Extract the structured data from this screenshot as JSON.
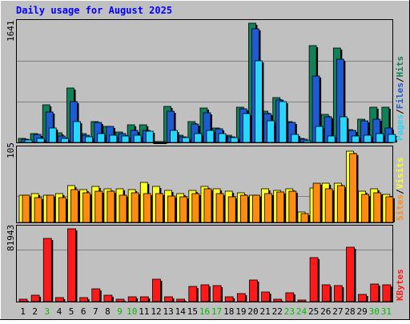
{
  "chart_data": [
    {
      "type": "bar",
      "title": "Daily usage for August 2025",
      "categories": [
        "1",
        "2",
        "3",
        "4",
        "5",
        "6",
        "7",
        "8",
        "9",
        "10",
        "11",
        "12",
        "13",
        "14",
        "15",
        "16",
        "17",
        "18",
        "19",
        "20",
        "21",
        "22",
        "23",
        "24",
        "25",
        "26",
        "27",
        "28",
        "29",
        "30",
        "31"
      ],
      "weekend_days": [
        "3",
        "9",
        "10",
        "16",
        "17",
        "23",
        "24",
        "30",
        "31"
      ],
      "ymax_label": "1641",
      "ylim": [
        0,
        1641
      ],
      "side_labels": [
        "Pages",
        "Files",
        "Hits"
      ],
      "series": [
        {
          "name": "Hits",
          "color": "#138157",
          "values": [
            55,
            123,
            521,
            134,
            752,
            116,
            286,
            225,
            145,
            238,
            242,
            1,
            493,
            94,
            283,
            473,
            194,
            98,
            487,
            1641,
            431,
            615,
            283,
            60,
            1328,
            383,
            1296,
            171,
            316,
            481,
            481
          ]
        },
        {
          "name": "Files",
          "color": "#1e5ad3",
          "values": [
            45,
            106,
            416,
            92,
            562,
            98,
            276,
            215,
            123,
            164,
            164,
            1,
            427,
            74,
            257,
            409,
            184,
            82,
            467,
            1563,
            393,
            582,
            275,
            42,
            913,
            349,
            1149,
            162,
            300,
            317,
            200
          ]
        },
        {
          "name": "Pages",
          "color": "#26d7ff",
          "values": [
            28,
            57,
            200,
            50,
            282,
            77,
            119,
            94,
            83,
            103,
            153,
            1,
            163,
            66,
            121,
            161,
            126,
            61,
            399,
            1119,
            300,
            566,
            107,
            22,
            225,
            89,
            350,
            93,
            95,
            119,
            105
          ]
        }
      ]
    },
    {
      "type": "bar",
      "categories": [
        "1",
        "2",
        "3",
        "4",
        "5",
        "6",
        "7",
        "8",
        "9",
        "10",
        "11",
        "12",
        "13",
        "14",
        "15",
        "16",
        "17",
        "18",
        "19",
        "20",
        "21",
        "22",
        "23",
        "24",
        "25",
        "26",
        "27",
        "28",
        "29",
        "30",
        "31"
      ],
      "ymax_label": "105",
      "ylim": [
        0,
        105
      ],
      "side_labels": [
        "Sites",
        "Visits"
      ],
      "series": [
        {
          "name": "Visits",
          "color": "#ffff26",
          "values": [
            39,
            41,
            39,
            42,
            53,
            47,
            52,
            49,
            49,
            47,
            58,
            52,
            46,
            41,
            46,
            52,
            49,
            45,
            43,
            39,
            48,
            46,
            48,
            15,
            50,
            56,
            57,
            103,
            45,
            48,
            40
          ]
        },
        {
          "name": "Sites",
          "color": "#ff8c10",
          "values": [
            39,
            36,
            39,
            36,
            47,
            43,
            45,
            45,
            39,
            43,
            41,
            42,
            38,
            37,
            42,
            49,
            41,
            37,
            39,
            39,
            41,
            44,
            45,
            13,
            57,
            49,
            53,
            99,
            40,
            43,
            37
          ]
        }
      ]
    },
    {
      "type": "bar",
      "categories": [
        "1",
        "2",
        "3",
        "4",
        "5",
        "6",
        "7",
        "8",
        "9",
        "10",
        "11",
        "12",
        "13",
        "14",
        "15",
        "16",
        "17",
        "18",
        "19",
        "20",
        "21",
        "22",
        "23",
        "24",
        "25",
        "26",
        "27",
        "28",
        "29",
        "30",
        "31"
      ],
      "ymax_label": "81943",
      "ylim": [
        0,
        81943
      ],
      "side_labels": [
        "KBytes"
      ],
      "series": [
        {
          "name": "KBytes",
          "color": "#ff1919",
          "values": [
            2400,
            7300,
            71300,
            4900,
            81943,
            4600,
            14200,
            7600,
            2800,
            5200,
            5100,
            25400,
            5200,
            2400,
            17000,
            18800,
            18100,
            5800,
            8700,
            24200,
            10700,
            2700,
            9800,
            2100,
            49900,
            18500,
            18300,
            61300,
            8000,
            19800,
            19000
          ]
        }
      ]
    }
  ],
  "colors": {
    "background": "#c0c0c0",
    "plot_background": "#bebebe",
    "gridline": "#808080",
    "title_text": "#0000ff",
    "weekday_text": "#000000",
    "weekend_text": "#00bb00",
    "side_label_separator": "#000000"
  }
}
